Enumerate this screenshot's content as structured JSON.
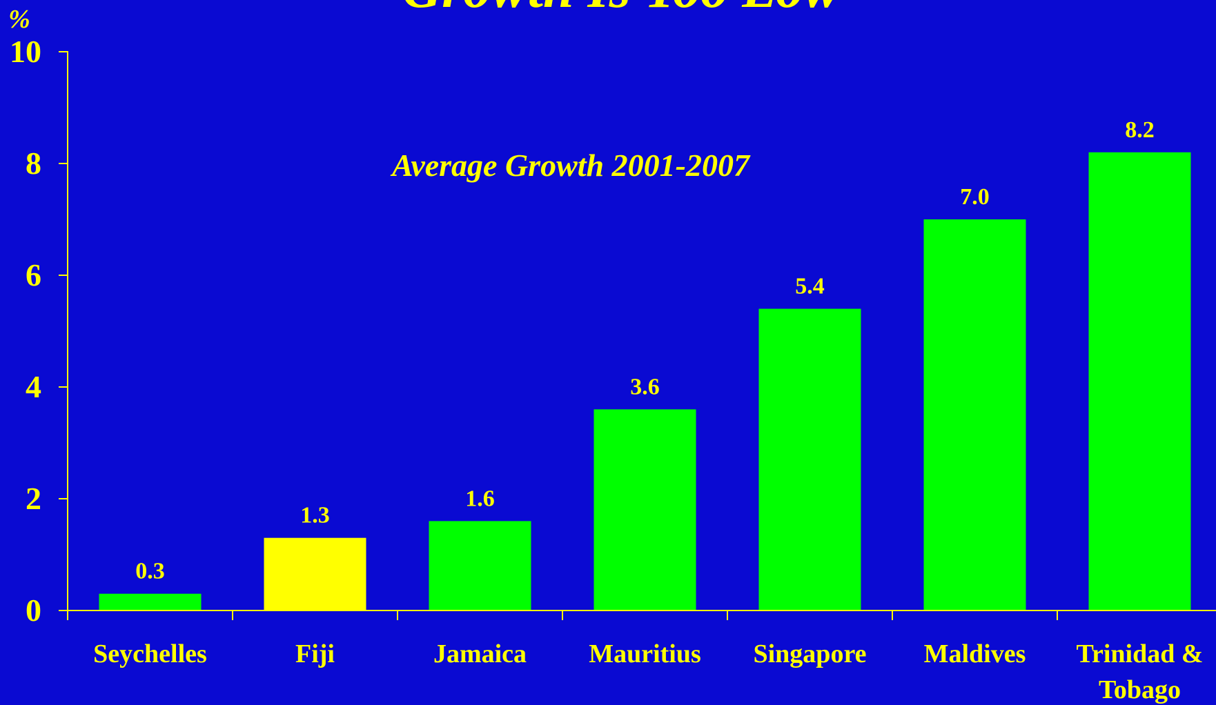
{
  "colors": {
    "background": "#0a0ad2",
    "text": "#ffff00",
    "axis": "#ffff00",
    "bar_default": "#00ff00",
    "bar_highlight": "#ffff00"
  },
  "chart_data": {
    "type": "bar",
    "title": "Growth Is Too Low",
    "subtitle": "Average Growth 2001-2007",
    "ylabel": "%",
    "xlabel": "",
    "ylim": [
      0,
      10
    ],
    "yticks": [
      0,
      2,
      4,
      6,
      8,
      10
    ],
    "grid": false,
    "legend": "none",
    "categories": [
      [
        "Seychelles"
      ],
      [
        "Fiji"
      ],
      [
        "Jamaica"
      ],
      [
        "Mauritius"
      ],
      [
        "Singapore"
      ],
      [
        "Maldives"
      ],
      [
        "Trinidad &",
        "Tobago"
      ]
    ],
    "values": [
      0.3,
      1.3,
      1.6,
      3.6,
      5.4,
      7.0,
      8.2
    ],
    "value_labels": [
      "0.3",
      "1.3",
      "1.6",
      "3.6",
      "5.4",
      "7.0",
      "8.2"
    ],
    "highlight": [
      "Fiji"
    ]
  }
}
